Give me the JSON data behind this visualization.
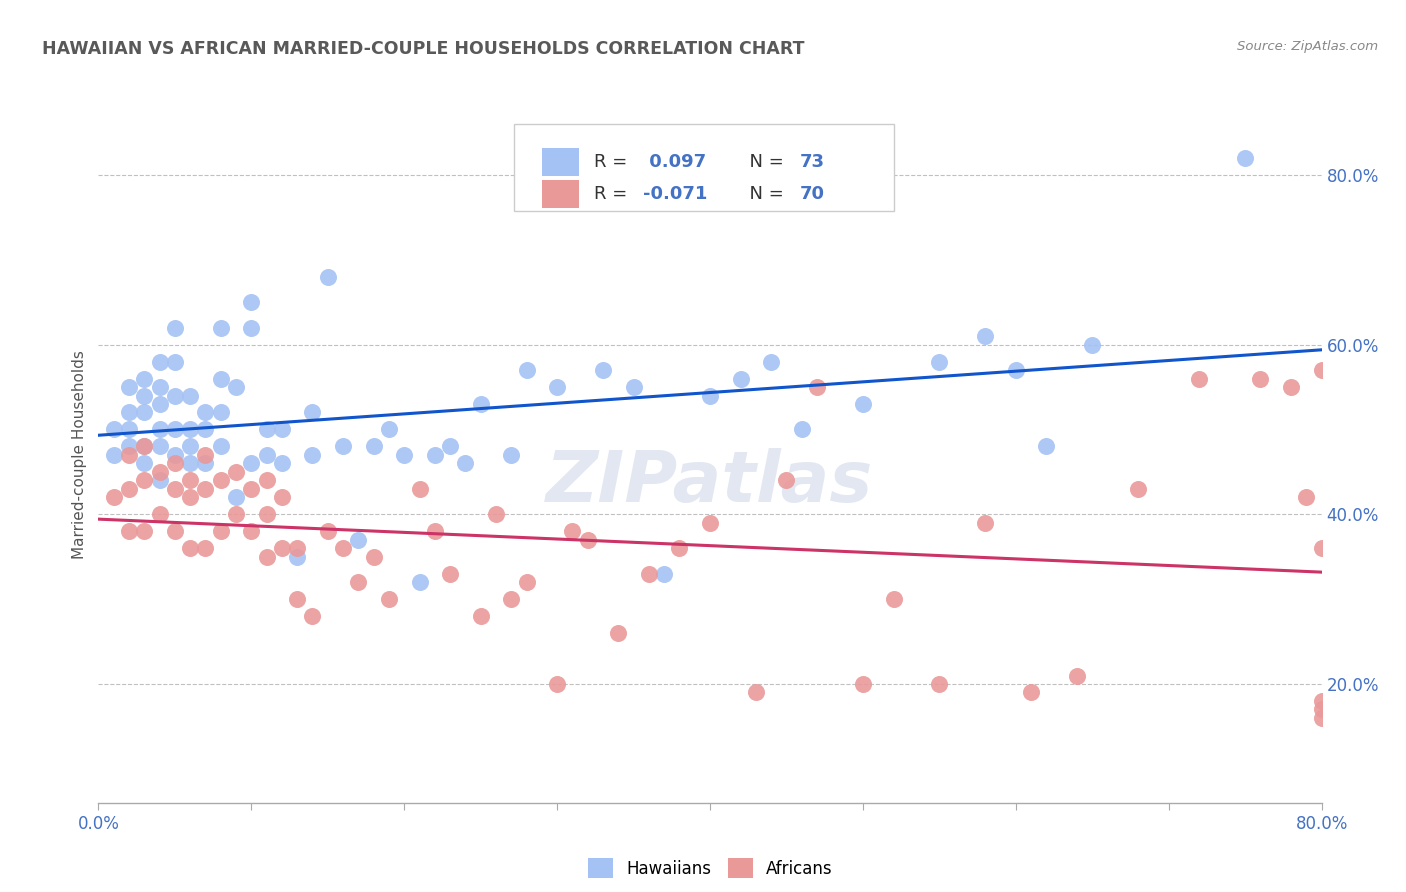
{
  "title": "HAWAIIAN VS AFRICAN MARRIED-COUPLE HOUSEHOLDS CORRELATION CHART",
  "source": "Source: ZipAtlas.com",
  "ylabel": "Married-couple Households",
  "xlim": [
    0.0,
    0.8
  ],
  "ylim": [
    0.06,
    0.88
  ],
  "hawaiian_R": 0.097,
  "hawaiian_N": 73,
  "african_R": -0.071,
  "african_N": 70,
  "hawaiian_color": "#a4c2f4",
  "african_color": "#ea9999",
  "hawaiian_line_color": "#1155cc",
  "african_line_color": "#cc3366",
  "legend_text_color": "#4472c4",
  "watermark": "ZIPatlas",
  "title_color": "#595959",
  "right_axis_color": "#4472c4",
  "grid_color": "#c0c0c0",
  "hawaiian_x": [
    0.01,
    0.01,
    0.02,
    0.02,
    0.02,
    0.02,
    0.03,
    0.03,
    0.03,
    0.03,
    0.03,
    0.04,
    0.04,
    0.04,
    0.04,
    0.04,
    0.04,
    0.05,
    0.05,
    0.05,
    0.05,
    0.05,
    0.06,
    0.06,
    0.06,
    0.06,
    0.07,
    0.07,
    0.07,
    0.08,
    0.08,
    0.08,
    0.08,
    0.09,
    0.09,
    0.1,
    0.1,
    0.1,
    0.11,
    0.11,
    0.12,
    0.12,
    0.13,
    0.14,
    0.14,
    0.15,
    0.16,
    0.17,
    0.18,
    0.19,
    0.2,
    0.21,
    0.22,
    0.23,
    0.24,
    0.25,
    0.27,
    0.28,
    0.3,
    0.33,
    0.35,
    0.37,
    0.4,
    0.42,
    0.44,
    0.46,
    0.5,
    0.55,
    0.58,
    0.6,
    0.62,
    0.65,
    0.75
  ],
  "hawaiian_y": [
    0.5,
    0.47,
    0.55,
    0.52,
    0.5,
    0.48,
    0.56,
    0.54,
    0.52,
    0.48,
    0.46,
    0.58,
    0.55,
    0.53,
    0.5,
    0.48,
    0.44,
    0.62,
    0.58,
    0.54,
    0.5,
    0.47,
    0.54,
    0.5,
    0.48,
    0.46,
    0.52,
    0.5,
    0.46,
    0.62,
    0.56,
    0.52,
    0.48,
    0.55,
    0.42,
    0.65,
    0.62,
    0.46,
    0.5,
    0.47,
    0.5,
    0.46,
    0.35,
    0.52,
    0.47,
    0.68,
    0.48,
    0.37,
    0.48,
    0.5,
    0.47,
    0.32,
    0.47,
    0.48,
    0.46,
    0.53,
    0.47,
    0.57,
    0.55,
    0.57,
    0.55,
    0.33,
    0.54,
    0.56,
    0.58,
    0.5,
    0.53,
    0.58,
    0.61,
    0.57,
    0.48,
    0.6,
    0.82
  ],
  "african_x": [
    0.01,
    0.02,
    0.02,
    0.02,
    0.03,
    0.03,
    0.03,
    0.04,
    0.04,
    0.05,
    0.05,
    0.05,
    0.06,
    0.06,
    0.06,
    0.07,
    0.07,
    0.07,
    0.08,
    0.08,
    0.09,
    0.09,
    0.1,
    0.1,
    0.11,
    0.11,
    0.11,
    0.12,
    0.12,
    0.13,
    0.13,
    0.14,
    0.15,
    0.16,
    0.17,
    0.18,
    0.19,
    0.21,
    0.22,
    0.23,
    0.25,
    0.26,
    0.27,
    0.28,
    0.3,
    0.31,
    0.32,
    0.34,
    0.36,
    0.38,
    0.4,
    0.43,
    0.45,
    0.47,
    0.5,
    0.52,
    0.55,
    0.58,
    0.61,
    0.64,
    0.68,
    0.72,
    0.76,
    0.78,
    0.79,
    0.8,
    0.8,
    0.8,
    0.8,
    0.8
  ],
  "african_y": [
    0.42,
    0.47,
    0.43,
    0.38,
    0.48,
    0.44,
    0.38,
    0.45,
    0.4,
    0.46,
    0.43,
    0.38,
    0.44,
    0.42,
    0.36,
    0.47,
    0.43,
    0.36,
    0.44,
    0.38,
    0.45,
    0.4,
    0.43,
    0.38,
    0.44,
    0.4,
    0.35,
    0.42,
    0.36,
    0.36,
    0.3,
    0.28,
    0.38,
    0.36,
    0.32,
    0.35,
    0.3,
    0.43,
    0.38,
    0.33,
    0.28,
    0.4,
    0.3,
    0.32,
    0.2,
    0.38,
    0.37,
    0.26,
    0.33,
    0.36,
    0.39,
    0.19,
    0.44,
    0.55,
    0.2,
    0.3,
    0.2,
    0.39,
    0.19,
    0.21,
    0.43,
    0.56,
    0.56,
    0.55,
    0.42,
    0.57,
    0.17,
    0.36,
    0.18,
    0.16
  ]
}
